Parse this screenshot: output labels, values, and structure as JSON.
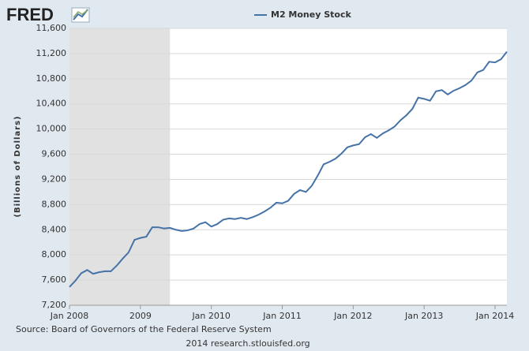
{
  "logo": "FRED",
  "chart_data": {
    "type": "line",
    "y_label": "(Billions of Dollars)",
    "source": "Source: Board of Governors of the Federal Reserve System",
    "credit": "2014 research.stlouisfed.org",
    "x": [
      "2008-01",
      "2008-02",
      "2008-03",
      "2008-04",
      "2008-05",
      "2008-06",
      "2008-07",
      "2008-08",
      "2008-09",
      "2008-10",
      "2008-11",
      "2008-12",
      "2009-01",
      "2009-02",
      "2009-03",
      "2009-04",
      "2009-05",
      "2009-06",
      "2009-07",
      "2009-08",
      "2009-09",
      "2009-10",
      "2009-11",
      "2009-12",
      "2010-01",
      "2010-02",
      "2010-03",
      "2010-04",
      "2010-05",
      "2010-06",
      "2010-07",
      "2010-08",
      "2010-09",
      "2010-10",
      "2010-11",
      "2010-12",
      "2011-01",
      "2011-02",
      "2011-03",
      "2011-04",
      "2011-05",
      "2011-06",
      "2011-07",
      "2011-08",
      "2011-09",
      "2011-10",
      "2011-11",
      "2011-12",
      "2012-01",
      "2012-02",
      "2012-03",
      "2012-04",
      "2012-05",
      "2012-06",
      "2012-07",
      "2012-08",
      "2012-09",
      "2012-10",
      "2012-11",
      "2012-12",
      "2013-01",
      "2013-02",
      "2013-03",
      "2013-04",
      "2013-05",
      "2013-06",
      "2013-07",
      "2013-08",
      "2013-09",
      "2013-10",
      "2013-11",
      "2013-12",
      "2014-01",
      "2014-02",
      "2014-03"
    ],
    "series": [
      {
        "name": "M2 Money Stock",
        "color": "#4572a7",
        "values": [
          7490,
          7590,
          7710,
          7760,
          7700,
          7725,
          7740,
          7740,
          7830,
          7940,
          8040,
          8240,
          8270,
          8290,
          8440,
          8440,
          8420,
          8430,
          8400,
          8380,
          8390,
          8420,
          8490,
          8520,
          8450,
          8490,
          8560,
          8580,
          8570,
          8590,
          8570,
          8600,
          8640,
          8690,
          8750,
          8830,
          8820,
          8860,
          8970,
          9030,
          9000,
          9100,
          9260,
          9440,
          9480,
          9530,
          9610,
          9710,
          9740,
          9760,
          9870,
          9920,
          9860,
          9930,
          9980,
          10040,
          10140,
          10220,
          10320,
          10500,
          10480,
          10450,
          10600,
          10620,
          10550,
          10610,
          10650,
          10700,
          10770,
          10900,
          10940,
          11070,
          11060,
          11110,
          11230
        ]
      }
    ],
    "shaded_ranges": [
      [
        "2008-01",
        "2009-06"
      ]
    ],
    "shade_color": "#e1e1e1",
    "xlim": [
      "2008-01",
      "2014-03"
    ],
    "xticks": [
      {
        "value": "2008-01",
        "label": "Jan 2008"
      },
      {
        "value": "2009-01",
        "label": "2009"
      },
      {
        "value": "2010-01",
        "label": "Jan 2010"
      },
      {
        "value": "2011-01",
        "label": "Jan 2011"
      },
      {
        "value": "2012-01",
        "label": "Jan 2012"
      },
      {
        "value": "2013-01",
        "label": "Jan 2013"
      },
      {
        "value": "2014-01",
        "label": "Jan 2014"
      }
    ],
    "ylim": [
      7200,
      11600
    ],
    "yticks": [
      {
        "value": 7200,
        "label": "7,200"
      },
      {
        "value": 7600,
        "label": "7,600"
      },
      {
        "value": 8000,
        "label": "8,000"
      },
      {
        "value": 8400,
        "label": "8,400"
      },
      {
        "value": 8800,
        "label": "8,800"
      },
      {
        "value": 9200,
        "label": "9,200"
      },
      {
        "value": 9600,
        "label": "9,600"
      },
      {
        "value": 10000,
        "label": "10,000"
      },
      {
        "value": 10400,
        "label": "10,400"
      },
      {
        "value": 10800,
        "label": "10,800"
      },
      {
        "value": 11200,
        "label": "11,200"
      },
      {
        "value": 11600,
        "label": "11,600"
      }
    ],
    "grid": true
  }
}
